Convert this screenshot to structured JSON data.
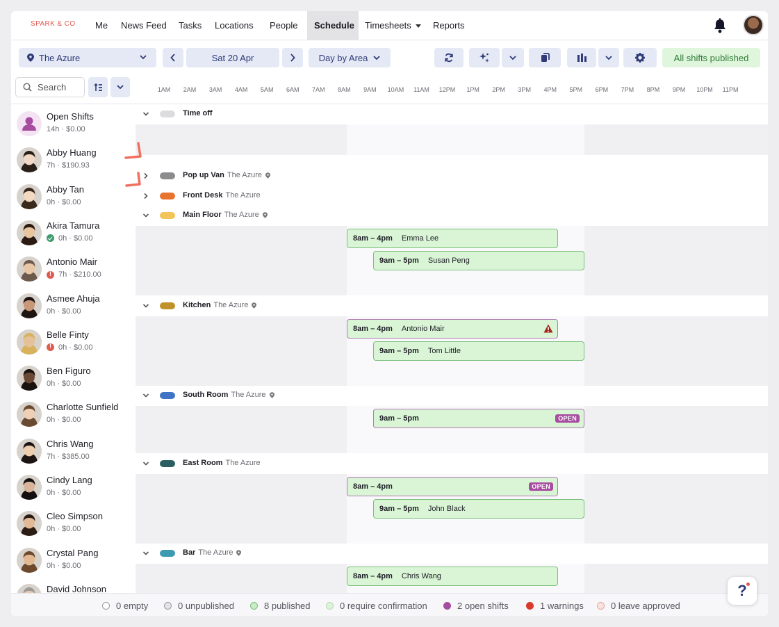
{
  "brand": "SPARK & CO",
  "nav": [
    {
      "label": "Me"
    },
    {
      "label": "News Feed"
    },
    {
      "label": "Tasks"
    },
    {
      "label": "Locations"
    },
    {
      "label": "People"
    },
    {
      "label": "Schedule",
      "active": true
    },
    {
      "label": "Timesheets",
      "dropdown": true
    },
    {
      "label": "Reports"
    }
  ],
  "toolbar": {
    "location": "The Azure",
    "date": "Sat 20 Apr",
    "view": "Day by Area",
    "publish_status": "All shifts published"
  },
  "search": {
    "label": "Search"
  },
  "hours": [
    "1AM",
    "2AM",
    "3AM",
    "4AM",
    "5AM",
    "6AM",
    "7AM",
    "8AM",
    "9AM",
    "10AM",
    "11AM",
    "12PM",
    "1PM",
    "2PM",
    "3PM",
    "4PM",
    "5PM",
    "6PM",
    "7PM",
    "8PM",
    "9PM",
    "10PM",
    "11PM"
  ],
  "people": [
    {
      "name": "Open Shifts",
      "meta": "14h · $0.00",
      "status": "none",
      "avatar": "open"
    },
    {
      "name": "Abby Huang",
      "meta": "7h · $190.93",
      "status": "none",
      "avatar": "a1"
    },
    {
      "name": "Abby Tan",
      "meta": "0h · $0.00",
      "status": "none",
      "avatar": "a2"
    },
    {
      "name": "Akira Tamura",
      "meta": "0h · $0.00",
      "status": "ok",
      "avatar": "a3"
    },
    {
      "name": "Antonio Mair",
      "meta": "7h · $210.00",
      "status": "warn",
      "avatar": "a4"
    },
    {
      "name": "Asmee Ahuja",
      "meta": "0h · $0.00",
      "status": "none",
      "avatar": "a5"
    },
    {
      "name": "Belle Finty",
      "meta": "0h · $0.00",
      "status": "warn",
      "avatar": "a6"
    },
    {
      "name": "Ben Figuro",
      "meta": "0h · $0.00",
      "status": "none",
      "avatar": "a7"
    },
    {
      "name": "Charlotte Sunfield",
      "meta": "0h · $0.00",
      "status": "none",
      "avatar": "a8"
    },
    {
      "name": "Chris Wang",
      "meta": "7h · $385.00",
      "status": "none",
      "avatar": "a9"
    },
    {
      "name": "Cindy Lang",
      "meta": "0h · $0.00",
      "status": "none",
      "avatar": "a10"
    },
    {
      "name": "Cleo Simpson",
      "meta": "0h · $0.00",
      "status": "none",
      "avatar": "a11"
    },
    {
      "name": "Crystal Pang",
      "meta": "0h · $0.00",
      "status": "none",
      "avatar": "a12"
    },
    {
      "name": "David Johnson",
      "meta": "",
      "status": "none",
      "avatar": "a13"
    }
  ],
  "areas": {
    "time_off": {
      "name": "Time off",
      "location": "",
      "color": "#dcdcde"
    },
    "pop_up_van": {
      "name": "Pop up Van",
      "location": "The Azure",
      "color": "#8c8c8f"
    },
    "front_desk": {
      "name": "Front Desk",
      "location": "The Azure",
      "color": "#e8732e"
    },
    "main_floor": {
      "name": "Main Floor",
      "location": "The Azure",
      "color": "#f2c45a"
    },
    "kitchen": {
      "name": "Kitchen",
      "location": "The Azure",
      "color": "#c0912a"
    },
    "south_room": {
      "name": "South Room",
      "location": "The Azure",
      "color": "#3f74c4"
    },
    "east_room": {
      "name": "East Room",
      "location": "The Azure",
      "color": "#2b5e60"
    },
    "bar": {
      "name": "Bar",
      "location": "The Azure",
      "color": "#3d9ab0"
    }
  },
  "shifts": {
    "main_floor_1": {
      "time": "8am – 4pm",
      "who": "Emma Lee"
    },
    "main_floor_2": {
      "time": "9am – 5pm",
      "who": "Susan Peng"
    },
    "kitchen_1": {
      "time": "8am – 4pm",
      "who": "Antonio Mair",
      "warning": true
    },
    "kitchen_2": {
      "time": "9am – 5pm",
      "who": "Tom Little"
    },
    "south_1": {
      "time": "9am – 5pm",
      "who": "",
      "badge": "OPEN"
    },
    "east_1": {
      "time": "8am – 4pm",
      "who": "",
      "badge": "OPEN"
    },
    "east_2": {
      "time": "9am – 5pm",
      "who": "John Black"
    },
    "bar_1": {
      "time": "8am – 4pm",
      "who": "Chris Wang"
    }
  },
  "footer": [
    {
      "label": "0 empty",
      "color": "#ffffff",
      "border": "#9a9aa2"
    },
    {
      "label": "0 unpublished",
      "color": "#e4e4e7",
      "border": "#9a9aa2"
    },
    {
      "label": "8 published",
      "color": "#c8ecc5",
      "border": "#7cbf7a"
    },
    {
      "label": "0 require confirmation",
      "color": "#dff3dc",
      "border": "#b6dcb3"
    },
    {
      "label": "2 open shifts",
      "color": "#a64d9f",
      "border": "#a64d9f"
    },
    {
      "label": "1 warnings",
      "color": "#d93a2b",
      "border": "#d93a2b"
    },
    {
      "label": "0 leave approved",
      "color": "#fbe3e0",
      "border": "#e7a59e"
    }
  ],
  "help": {
    "label": "?"
  }
}
